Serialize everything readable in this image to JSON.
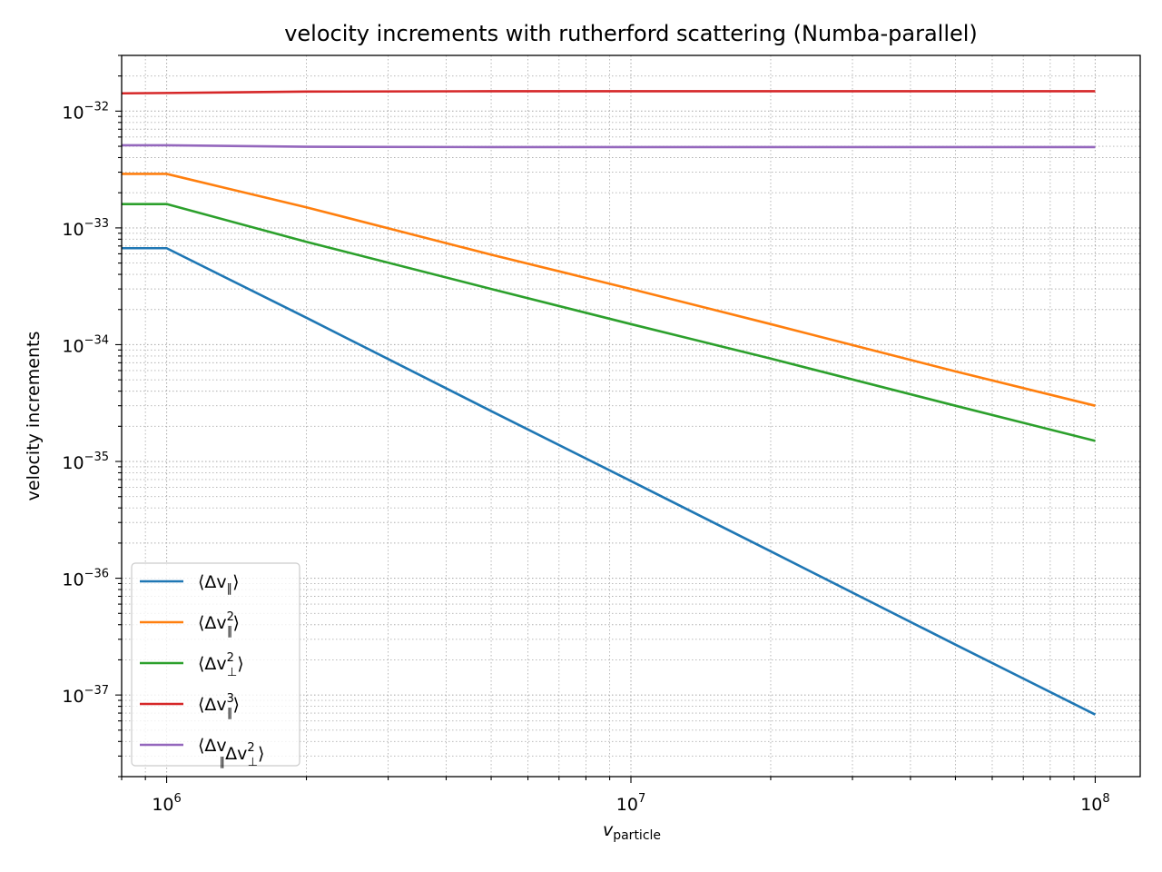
{
  "chart_data": {
    "type": "line",
    "title": "velocity increments with rutherford scattering (Numba-parallel)",
    "xlabel": {
      "base": "v",
      "sub": "particle"
    },
    "ylabel": "velocity increments",
    "xscale": "log",
    "yscale": "log",
    "xlim": [
      800000,
      125000000
    ],
    "ylim": [
      2e-38,
      3e-32
    ],
    "grid": true,
    "grid_which": "both",
    "legend_position": "lower-left",
    "x_ticks": [
      {
        "value": 1000000,
        "mantissa": "10",
        "exp": "6"
      },
      {
        "value": 10000000,
        "mantissa": "10",
        "exp": "7"
      },
      {
        "value": 100000000,
        "mantissa": "10",
        "exp": "8"
      }
    ],
    "y_ticks": [
      {
        "value": 1e-37,
        "mantissa": "10",
        "exp": "−37"
      },
      {
        "value": 1e-36,
        "mantissa": "10",
        "exp": "−36"
      },
      {
        "value": 1e-35,
        "mantissa": "10",
        "exp": "−35"
      },
      {
        "value": 1e-34,
        "mantissa": "10",
        "exp": "−34"
      },
      {
        "value": 1e-33,
        "mantissa": "10",
        "exp": "−33"
      },
      {
        "value": 1e-32,
        "mantissa": "10",
        "exp": "−32"
      }
    ],
    "series": [
      {
        "name": "⟨Δv∥⟩",
        "legend": {
          "base": "⟨Δv",
          "sub": "∥",
          "sup": "",
          "tail": "⟩"
        },
        "color": "#1f77b4",
        "x": [
          800000,
          1000000,
          2000000,
          5000000,
          10000000,
          20000000,
          50000000,
          100000000
        ],
        "y": [
          6.7e-34,
          6.7e-34,
          1.7e-34,
          2.7e-35,
          6.8e-36,
          1.7e-36,
          2.7e-37,
          6.8e-38
        ]
      },
      {
        "name": "⟨Δv∥²⟩",
        "legend": {
          "base": "⟨Δv",
          "sub": "∥",
          "sup": "2",
          "tail": "⟩"
        },
        "color": "#ff7f0e",
        "x": [
          800000,
          1000000,
          2000000,
          5000000,
          10000000,
          20000000,
          50000000,
          100000000
        ],
        "y": [
          2.9e-33,
          2.9e-33,
          1.5e-33,
          5.9e-34,
          3e-34,
          1.5e-34,
          5.9e-35,
          3e-35
        ]
      },
      {
        "name": "⟨Δv⊥²⟩",
        "legend": {
          "base": "⟨Δv",
          "sub": "⊥",
          "sup": "2",
          "tail": "⟩"
        },
        "color": "#2ca02c",
        "x": [
          800000,
          1000000,
          2000000,
          5000000,
          10000000,
          20000000,
          50000000,
          100000000
        ],
        "y": [
          1.6e-33,
          1.6e-33,
          7.6e-34,
          3e-34,
          1.5e-34,
          7.6e-35,
          3e-35,
          1.5e-35
        ]
      },
      {
        "name": "⟨Δv∥³⟩",
        "legend": {
          "base": "⟨Δv",
          "sub": "∥",
          "sup": "3",
          "tail": "⟩"
        },
        "color": "#d62728",
        "x": [
          800000,
          1000000,
          2000000,
          5000000,
          10000000,
          20000000,
          50000000,
          100000000
        ],
        "y": [
          1.42e-32,
          1.43e-32,
          1.47e-32,
          1.48e-32,
          1.48e-32,
          1.48e-32,
          1.48e-32,
          1.48e-32
        ]
      },
      {
        "name": "⟨Δv∥Δv⊥²⟩",
        "legend": {
          "base": "⟨Δv",
          "sub": "∥",
          "mid": "Δv",
          "sub2": "⊥",
          "sup": "2",
          "tail": "⟩"
        },
        "color": "#9467bd",
        "x": [
          800000,
          1000000,
          2000000,
          5000000,
          10000000,
          20000000,
          50000000,
          100000000
        ],
        "y": [
          5.1e-33,
          5.1e-33,
          4.95e-33,
          4.92e-33,
          4.92e-33,
          4.92e-33,
          4.92e-33,
          4.92e-33
        ]
      }
    ]
  }
}
